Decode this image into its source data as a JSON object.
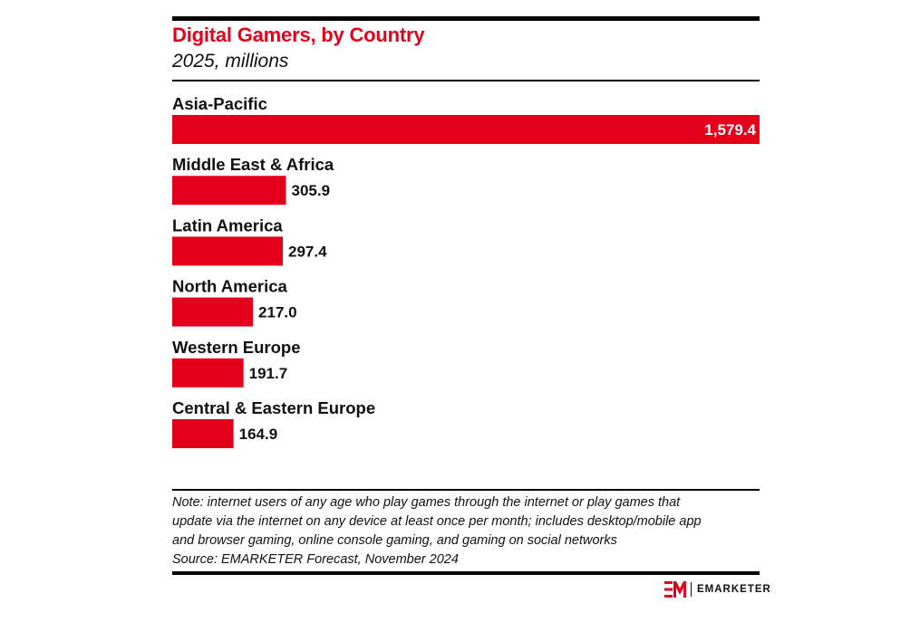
{
  "chart_data": {
    "type": "bar",
    "orientation": "horizontal",
    "title": "Digital Gamers, by Country",
    "subtitle": "2025, millions",
    "categories": [
      "Asia-Pacific",
      "Middle East & Africa",
      "Latin America",
      "North America",
      "Western Europe",
      "Central & Eastern Europe"
    ],
    "values": [
      1579.4,
      305.9,
      297.4,
      217.0,
      191.7,
      164.9
    ],
    "value_labels": [
      "1,579.4",
      "305.9",
      "297.4",
      "217.0",
      "191.7",
      "164.9"
    ],
    "xlim": [
      0,
      1579.4
    ],
    "grid": false,
    "legend": "none",
    "bar_color": "#e4001b"
  },
  "footer": {
    "note_lines": [
      "Note: internet users of any age who play games through the internet or play games that",
      "update via the internet on any device at least once per month; includes desktop/mobile app",
      "and browser gaming, online console gaming, and gaming on social networks"
    ],
    "source": "Source: EMARKETER Forecast, November 2024"
  },
  "logo": {
    "text": "EMARKETER",
    "icon": "em-logo-icon",
    "color": "#e4001b"
  }
}
